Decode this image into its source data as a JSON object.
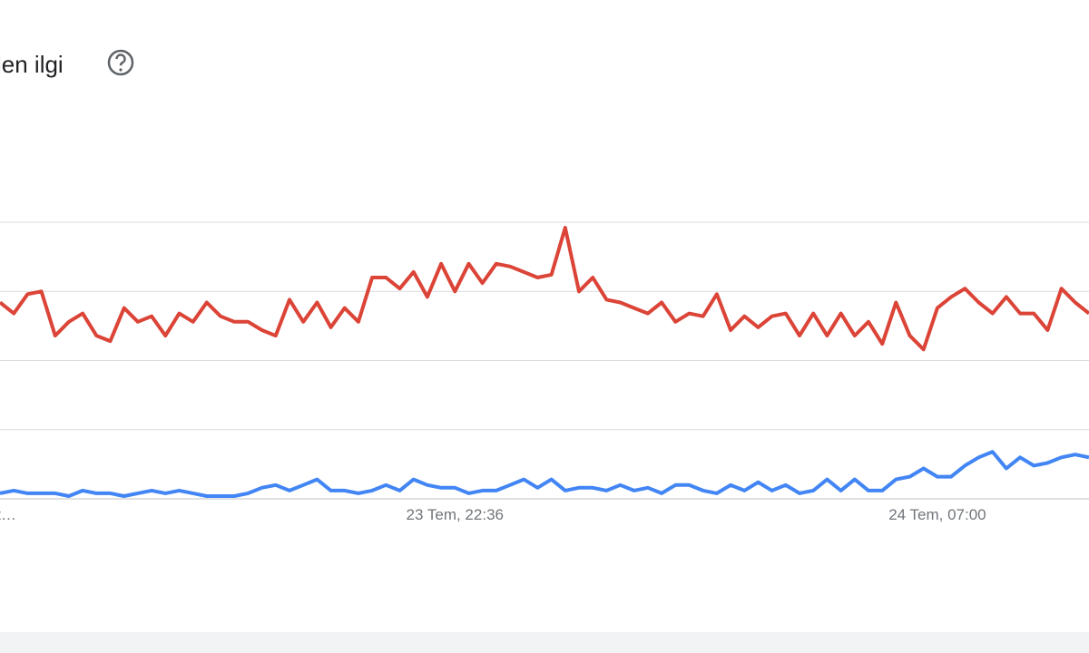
{
  "chart_data": {
    "type": "line",
    "title": "len ilgi",
    "categories": [
      "t…",
      null,
      null,
      null,
      null,
      null,
      null,
      null,
      null,
      null,
      null,
      null,
      null,
      null,
      null,
      null,
      null,
      null,
      null,
      null,
      null,
      null,
      null,
      null,
      null,
      null,
      null,
      null,
      null,
      null,
      null,
      null,
      null,
      "23 Tem, 22:36",
      null,
      null,
      null,
      null,
      null,
      null,
      null,
      null,
      null,
      null,
      null,
      null,
      null,
      null,
      null,
      null,
      null,
      null,
      null,
      null,
      null,
      null,
      null,
      null,
      null,
      null,
      null,
      null,
      null,
      null,
      null,
      null,
      null,
      null,
      "24 Tem, 07:00",
      null,
      null,
      null,
      null,
      null,
      null,
      null,
      null,
      null,
      null,
      null
    ],
    "series": [
      {
        "color": "#db4437",
        "values": [
          71,
          67,
          74,
          75,
          59,
          64,
          67,
          59,
          57,
          69,
          64,
          66,
          59,
          67,
          64,
          71,
          66,
          64,
          64,
          61,
          59,
          72,
          64,
          71,
          62,
          69,
          64,
          80,
          80,
          76,
          82,
          73,
          85,
          75,
          85,
          78,
          85,
          84,
          82,
          80,
          81,
          98,
          75,
          80,
          72,
          71,
          69,
          67,
          71,
          64,
          67,
          66,
          74,
          61,
          66,
          62,
          66,
          67,
          59,
          67,
          59,
          67,
          59,
          64,
          56,
          71,
          59,
          54,
          69,
          73,
          76,
          71,
          67,
          73,
          67,
          67,
          61,
          76,
          71,
          67
        ]
      },
      {
        "color": "#4285f4",
        "values": [
          2,
          3,
          2,
          2,
          2,
          1,
          3,
          2,
          2,
          1,
          2,
          3,
          2,
          3,
          2,
          1,
          1,
          1,
          2,
          4,
          5,
          3,
          5,
          7,
          3,
          3,
          2,
          3,
          5,
          3,
          7,
          5,
          4,
          4,
          2,
          3,
          3,
          5,
          7,
          4,
          7,
          3,
          4,
          4,
          3,
          5,
          3,
          4,
          2,
          5,
          5,
          3,
          2,
          5,
          3,
          6,
          3,
          5,
          2,
          3,
          7,
          3,
          7,
          3,
          3,
          7,
          8,
          11,
          8,
          8,
          12,
          15,
          17,
          11,
          15,
          12,
          13,
          15,
          16,
          15
        ]
      }
    ],
    "ylim": [
      0,
      100
    ],
    "yticks": [
      0,
      25,
      50,
      75,
      100
    ],
    "grid": true
  }
}
